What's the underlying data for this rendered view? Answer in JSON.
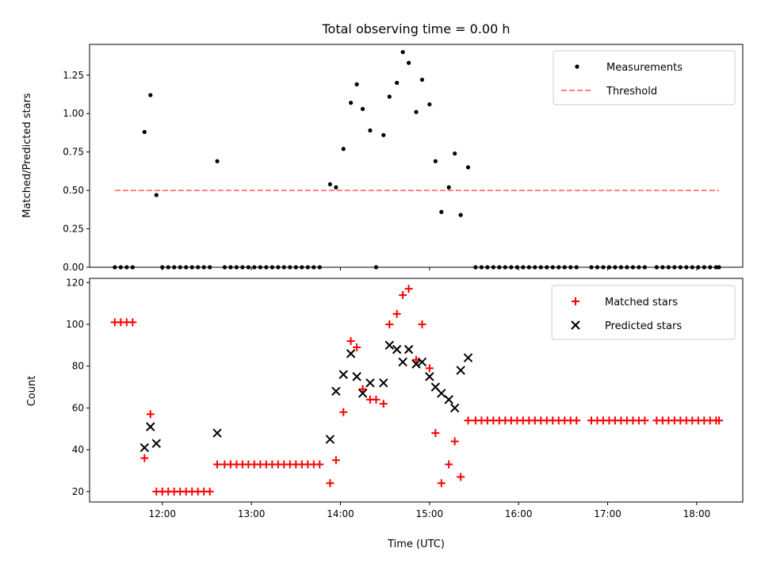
{
  "chart_data": [
    {
      "type": "scatter",
      "title": "Total observing time = 0.00 h",
      "ylabel": "Matched/Predicted stars",
      "xlim": [
        "11:11",
        "18:31"
      ],
      "ylim": [
        0,
        1.45
      ],
      "yticks": [
        0.0,
        0.25,
        0.5,
        0.75,
        1.0,
        1.25
      ],
      "ytick_labels": [
        "0.00",
        "0.25",
        "0.50",
        "0.75",
        "1.00",
        "1.25"
      ],
      "legend_position": "top-right",
      "series": [
        {
          "name": "Measurements",
          "kind": "points",
          "color": "#000000",
          "points": [
            [
              "11:28",
              0
            ],
            [
              "11:32",
              0
            ],
            [
              "11:36",
              0
            ],
            [
              "11:40",
              0
            ],
            [
              "11:48",
              0.88
            ],
            [
              "11:52",
              1.12
            ],
            [
              "11:56",
              0.47
            ],
            [
              "12:00",
              0
            ],
            [
              "12:04",
              0
            ],
            [
              "12:08",
              0
            ],
            [
              "12:12",
              0
            ],
            [
              "12:16",
              0
            ],
            [
              "12:20",
              0
            ],
            [
              "12:24",
              0
            ],
            [
              "12:28",
              0
            ],
            [
              "12:32",
              0
            ],
            [
              "12:37",
              0.69
            ],
            [
              "12:42",
              0
            ],
            [
              "12:46",
              0
            ],
            [
              "12:50",
              0
            ],
            [
              "12:54",
              0
            ],
            [
              "12:58",
              0
            ],
            [
              "13:02",
              0
            ],
            [
              "13:06",
              0
            ],
            [
              "13:10",
              0
            ],
            [
              "13:14",
              0
            ],
            [
              "13:18",
              0
            ],
            [
              "13:22",
              0
            ],
            [
              "13:26",
              0
            ],
            [
              "13:30",
              0
            ],
            [
              "13:34",
              0
            ],
            [
              "13:38",
              0
            ],
            [
              "13:42",
              0
            ],
            [
              "13:46",
              0
            ],
            [
              "13:53",
              0.54
            ],
            [
              "13:57",
              0.52
            ],
            [
              "14:02",
              0.77
            ],
            [
              "14:07",
              1.07
            ],
            [
              "14:11",
              1.19
            ],
            [
              "14:15",
              1.03
            ],
            [
              "14:20",
              0.89
            ],
            [
              "14:24",
              0
            ],
            [
              "14:29",
              0.86
            ],
            [
              "14:33",
              1.11
            ],
            [
              "14:38",
              1.2
            ],
            [
              "14:42",
              1.4
            ],
            [
              "14:46",
              1.33
            ],
            [
              "14:51",
              1.01
            ],
            [
              "14:55",
              1.22
            ],
            [
              "15:00",
              1.06
            ],
            [
              "15:04",
              0.69
            ],
            [
              "15:08",
              0.36
            ],
            [
              "15:13",
              0.52
            ],
            [
              "15:17",
              0.74
            ],
            [
              "15:21",
              0.34
            ],
            [
              "15:26",
              0.65
            ],
            [
              "15:31",
              0
            ],
            [
              "15:35",
              0
            ],
            [
              "15:39",
              0
            ],
            [
              "15:43",
              0
            ],
            [
              "15:47",
              0
            ],
            [
              "15:51",
              0
            ],
            [
              "15:55",
              0
            ],
            [
              "15:59",
              0
            ],
            [
              "16:03",
              0
            ],
            [
              "16:07",
              0
            ],
            [
              "16:11",
              0
            ],
            [
              "16:15",
              0
            ],
            [
              "16:19",
              0
            ],
            [
              "16:23",
              0
            ],
            [
              "16:27",
              0
            ],
            [
              "16:31",
              0
            ],
            [
              "16:35",
              0
            ],
            [
              "16:39",
              0
            ],
            [
              "16:49",
              0
            ],
            [
              "16:53",
              0
            ],
            [
              "16:57",
              0
            ],
            [
              "17:01",
              0
            ],
            [
              "17:05",
              0
            ],
            [
              "17:09",
              0
            ],
            [
              "17:13",
              0
            ],
            [
              "17:17",
              0
            ],
            [
              "17:21",
              0
            ],
            [
              "17:25",
              0
            ],
            [
              "17:33",
              0
            ],
            [
              "17:37",
              0
            ],
            [
              "17:41",
              0
            ],
            [
              "17:45",
              0
            ],
            [
              "17:49",
              0
            ],
            [
              "17:53",
              0
            ],
            [
              "17:57",
              0
            ],
            [
              "18:01",
              0
            ],
            [
              "18:05",
              0
            ],
            [
              "18:09",
              0
            ],
            [
              "18:13",
              0
            ],
            [
              "18:15",
              0
            ]
          ]
        },
        {
          "name": "Threshold",
          "kind": "line",
          "color": "#ff7f7f",
          "points": [
            [
              "11:28",
              0.5
            ],
            [
              "18:15",
              0.5
            ]
          ]
        }
      ]
    },
    {
      "type": "scatter",
      "xlabel": "Time (UTC)",
      "ylabel": "Count",
      "xlim": [
        "11:11",
        "18:31"
      ],
      "ylim": [
        15,
        122
      ],
      "xticks": [
        "12:00",
        "13:00",
        "14:00",
        "15:00",
        "16:00",
        "17:00",
        "18:00"
      ],
      "yticks": [
        20,
        40,
        60,
        80,
        100,
        120
      ],
      "legend_position": "top-right",
      "series": [
        {
          "name": "Matched stars",
          "kind": "plus",
          "color": "#ff0000",
          "points": [
            [
              "11:28",
              101
            ],
            [
              "11:32",
              101
            ],
            [
              "11:36",
              101
            ],
            [
              "11:40",
              101
            ],
            [
              "11:48",
              36
            ],
            [
              "11:52",
              57
            ],
            [
              "11:56",
              20
            ],
            [
              "12:00",
              20
            ],
            [
              "12:04",
              20
            ],
            [
              "12:08",
              20
            ],
            [
              "12:12",
              20
            ],
            [
              "12:16",
              20
            ],
            [
              "12:20",
              20
            ],
            [
              "12:24",
              20
            ],
            [
              "12:28",
              20
            ],
            [
              "12:32",
              20
            ],
            [
              "12:37",
              33
            ],
            [
              "12:42",
              33
            ],
            [
              "12:46",
              33
            ],
            [
              "12:50",
              33
            ],
            [
              "12:54",
              33
            ],
            [
              "12:58",
              33
            ],
            [
              "13:02",
              33
            ],
            [
              "13:06",
              33
            ],
            [
              "13:10",
              33
            ],
            [
              "13:14",
              33
            ],
            [
              "13:18",
              33
            ],
            [
              "13:22",
              33
            ],
            [
              "13:26",
              33
            ],
            [
              "13:30",
              33
            ],
            [
              "13:34",
              33
            ],
            [
              "13:38",
              33
            ],
            [
              "13:42",
              33
            ],
            [
              "13:46",
              33
            ],
            [
              "13:53",
              24
            ],
            [
              "13:57",
              35
            ],
            [
              "14:02",
              58
            ],
            [
              "14:07",
              92
            ],
            [
              "14:11",
              89
            ],
            [
              "14:15",
              69
            ],
            [
              "14:20",
              64
            ],
            [
              "14:24",
              64
            ],
            [
              "14:29",
              62
            ],
            [
              "14:33",
              100
            ],
            [
              "14:38",
              105
            ],
            [
              "14:42",
              114
            ],
            [
              "14:46",
              117
            ],
            [
              "14:51",
              83
            ],
            [
              "14:55",
              100
            ],
            [
              "15:00",
              79
            ],
            [
              "15:04",
              48
            ],
            [
              "15:08",
              24
            ],
            [
              "15:13",
              33
            ],
            [
              "15:17",
              44
            ],
            [
              "15:21",
              27
            ],
            [
              "15:26",
              54
            ],
            [
              "15:31",
              54
            ],
            [
              "15:35",
              54
            ],
            [
              "15:39",
              54
            ],
            [
              "15:43",
              54
            ],
            [
              "15:47",
              54
            ],
            [
              "15:51",
              54
            ],
            [
              "15:55",
              54
            ],
            [
              "15:59",
              54
            ],
            [
              "16:03",
              54
            ],
            [
              "16:07",
              54
            ],
            [
              "16:11",
              54
            ],
            [
              "16:15",
              54
            ],
            [
              "16:19",
              54
            ],
            [
              "16:23",
              54
            ],
            [
              "16:27",
              54
            ],
            [
              "16:31",
              54
            ],
            [
              "16:35",
              54
            ],
            [
              "16:39",
              54
            ],
            [
              "16:49",
              54
            ],
            [
              "16:53",
              54
            ],
            [
              "16:57",
              54
            ],
            [
              "17:01",
              54
            ],
            [
              "17:05",
              54
            ],
            [
              "17:09",
              54
            ],
            [
              "17:13",
              54
            ],
            [
              "17:17",
              54
            ],
            [
              "17:21",
              54
            ],
            [
              "17:25",
              54
            ],
            [
              "17:33",
              54
            ],
            [
              "17:37",
              54
            ],
            [
              "17:41",
              54
            ],
            [
              "17:45",
              54
            ],
            [
              "17:49",
              54
            ],
            [
              "17:53",
              54
            ],
            [
              "17:57",
              54
            ],
            [
              "18:01",
              54
            ],
            [
              "18:05",
              54
            ],
            [
              "18:09",
              54
            ],
            [
              "18:13",
              54
            ],
            [
              "18:15",
              54
            ]
          ]
        },
        {
          "name": "Predicted stars",
          "kind": "x",
          "color": "#000000",
          "points": [
            [
              "11:48",
              41
            ],
            [
              "11:52",
              51
            ],
            [
              "11:56",
              43
            ],
            [
              "12:37",
              48
            ],
            [
              "13:53",
              45
            ],
            [
              "13:57",
              68
            ],
            [
              "14:02",
              76
            ],
            [
              "14:07",
              86
            ],
            [
              "14:11",
              75
            ],
            [
              "14:15",
              67
            ],
            [
              "14:20",
              72
            ],
            [
              "14:29",
              72
            ],
            [
              "14:33",
              90
            ],
            [
              "14:38",
              88
            ],
            [
              "14:42",
              82
            ],
            [
              "14:46",
              88
            ],
            [
              "14:51",
              81
            ],
            [
              "14:55",
              82
            ],
            [
              "15:00",
              75
            ],
            [
              "15:04",
              70
            ],
            [
              "15:08",
              67
            ],
            [
              "15:13",
              64
            ],
            [
              "15:17",
              60
            ],
            [
              "15:21",
              78
            ],
            [
              "15:26",
              84
            ]
          ]
        }
      ]
    }
  ]
}
